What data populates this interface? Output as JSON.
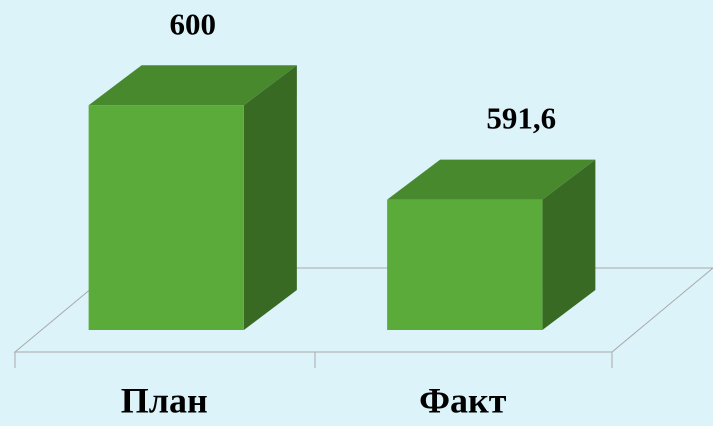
{
  "chart_data": {
    "type": "bar3d",
    "categories": [
      "План",
      "Факт"
    ],
    "values": [
      600,
      591.6
    ],
    "value_labels": [
      "600",
      "591,6"
    ],
    "color": "#5aab3a",
    "ylim": [
      580,
      605
    ]
  }
}
